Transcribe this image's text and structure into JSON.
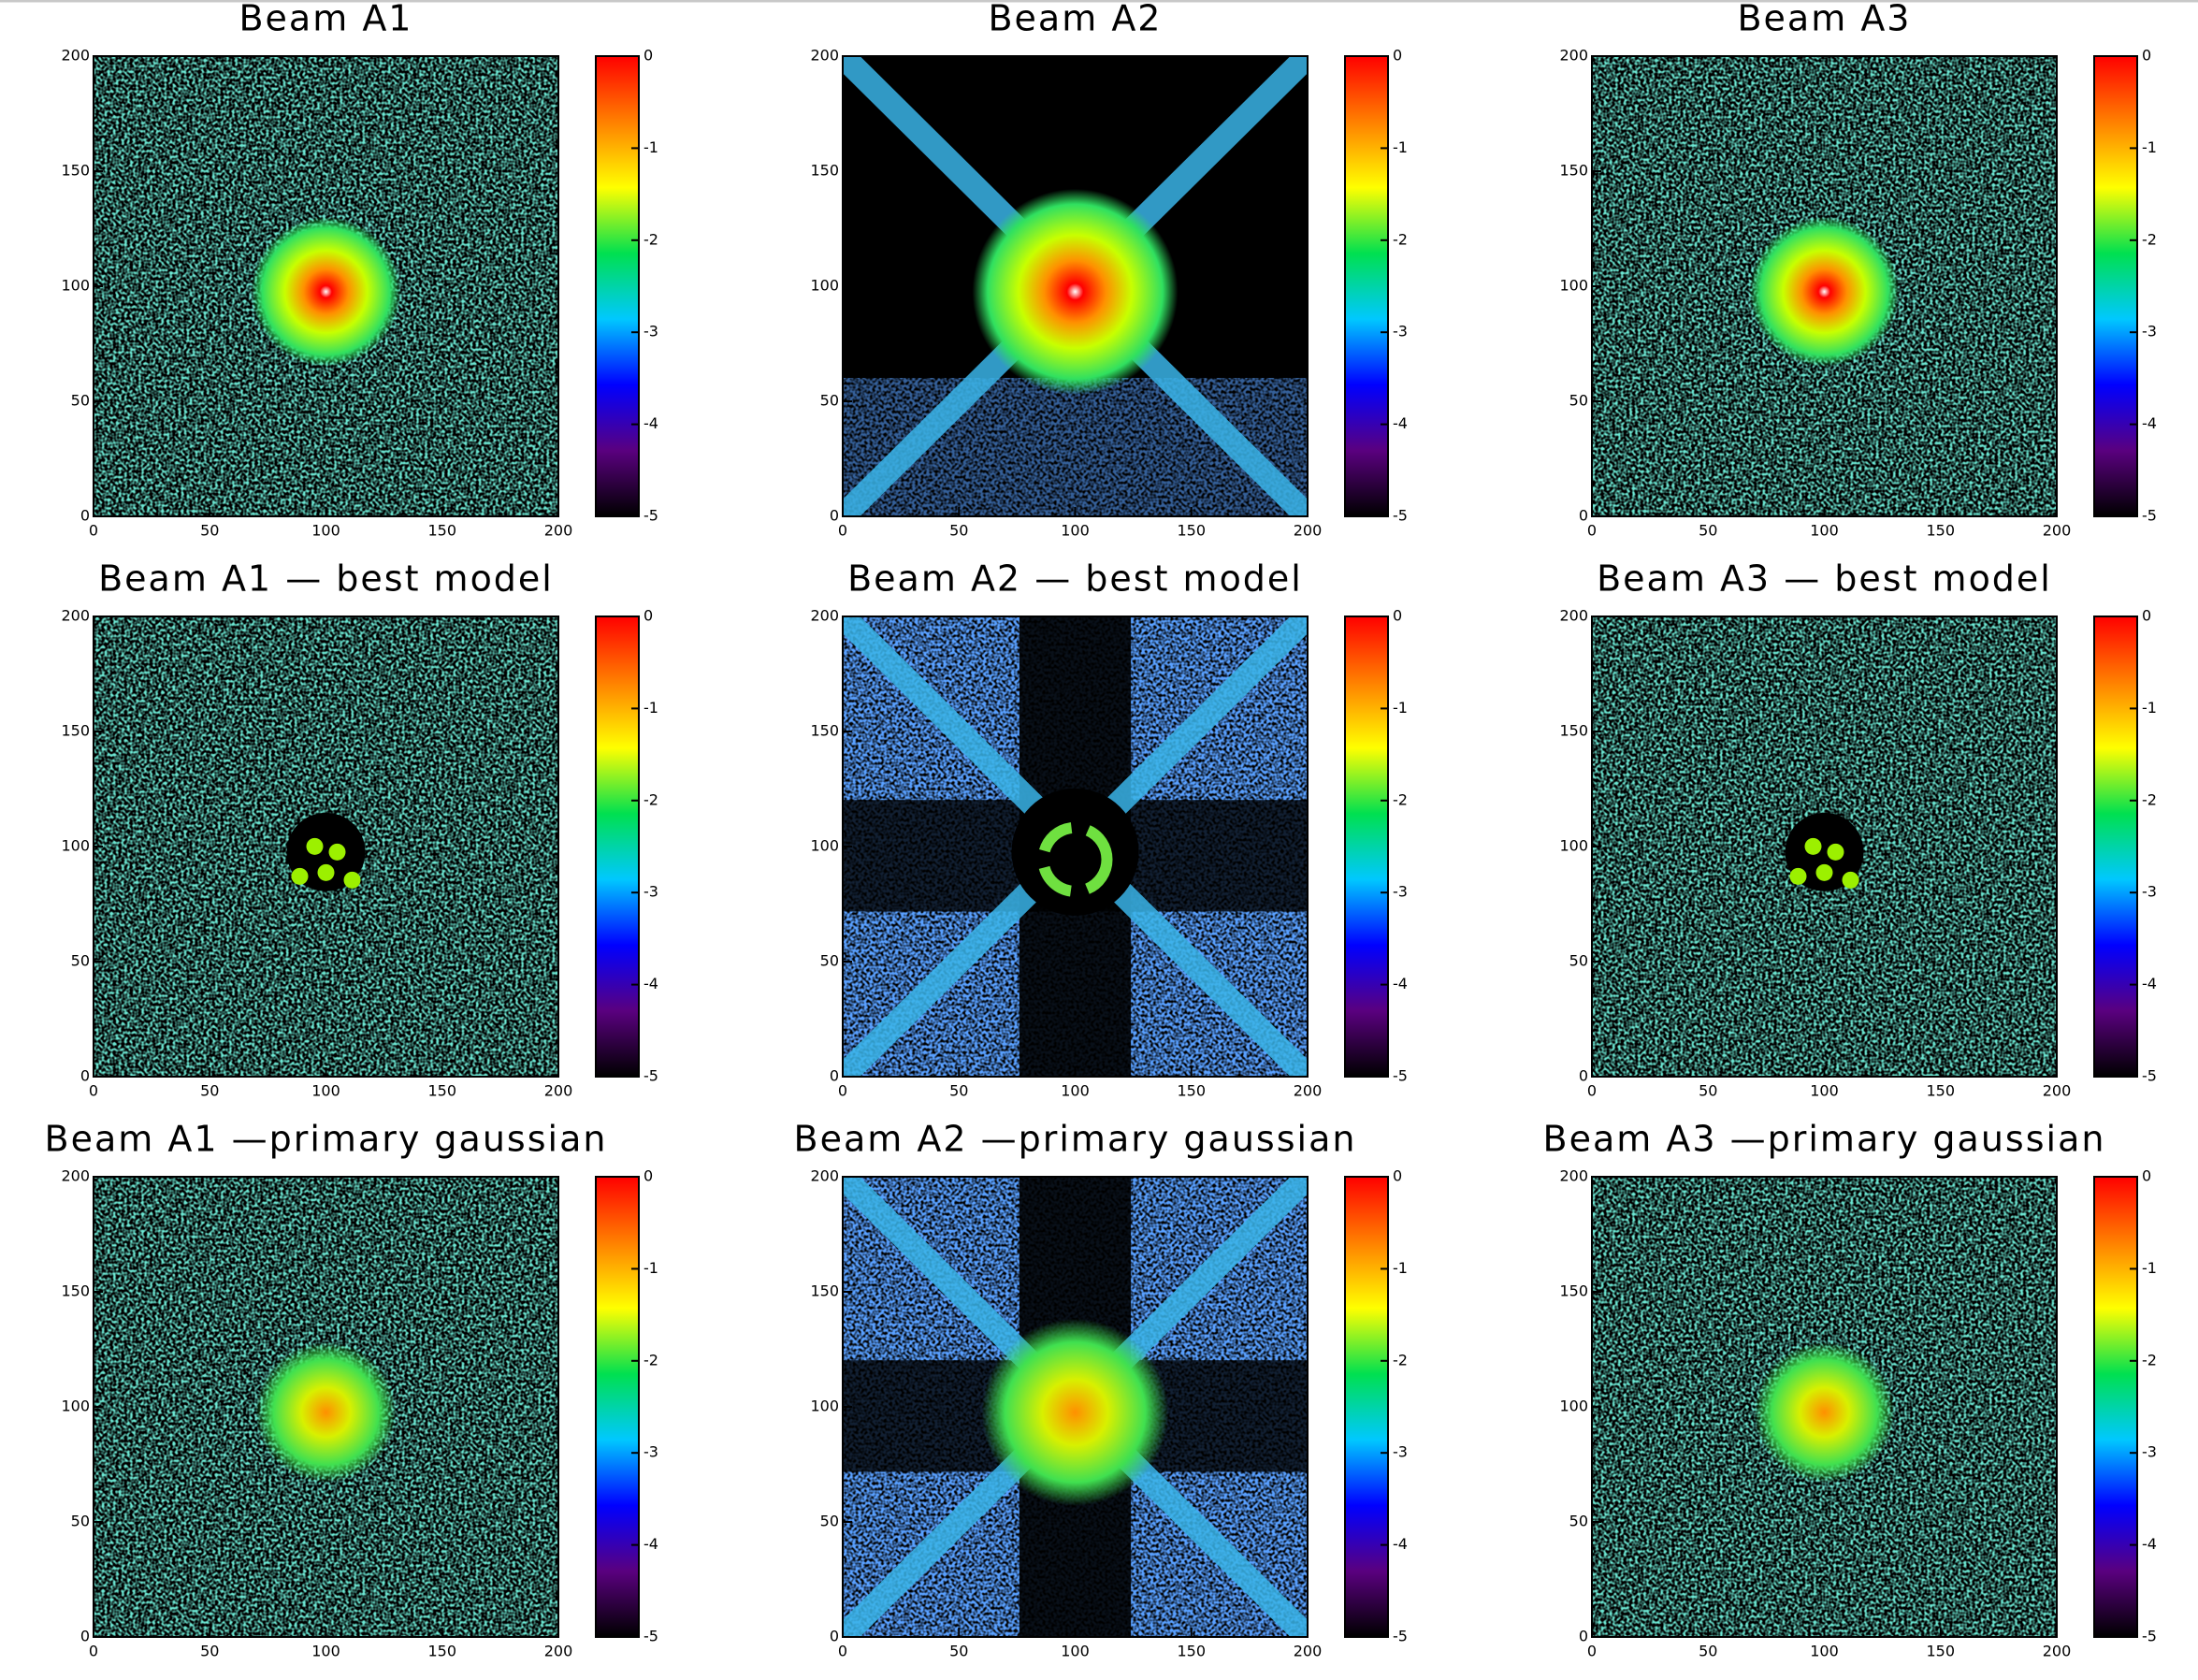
{
  "chart_data": [
    {
      "type": "heatmap",
      "title": "Beam A1",
      "xlim": [
        0,
        200
      ],
      "ylim": [
        0,
        200
      ],
      "xticks": [
        0,
        50,
        100,
        150,
        200
      ],
      "yticks": [
        0,
        50,
        100,
        150,
        200
      ],
      "zlim": [
        -5,
        0
      ],
      "zticks": [
        0,
        -1,
        -2,
        -3,
        -4,
        -5
      ],
      "colormap": [
        "#000000",
        "#5a007f",
        "#0000ff",
        "#00c8ff",
        "#00e050",
        "#ffff00",
        "#ff8000",
        "#ff0000"
      ]
    },
    {
      "type": "heatmap",
      "title": "Beam A2",
      "xlim": [
        0,
        200
      ],
      "ylim": [
        0,
        200
      ],
      "xticks": [
        0,
        50,
        100,
        150,
        200
      ],
      "yticks": [
        0,
        50,
        100,
        150,
        200
      ],
      "zlim": [
        -5,
        0
      ],
      "zticks": [
        0,
        -1,
        -2,
        -3,
        -4,
        -5
      ],
      "colormap": [
        "#000000",
        "#5a007f",
        "#0000ff",
        "#00c8ff",
        "#00e050",
        "#ffff00",
        "#ff8000",
        "#ff0000"
      ]
    },
    {
      "type": "heatmap",
      "title": "Beam A3",
      "xlim": [
        0,
        200
      ],
      "ylim": [
        0,
        200
      ],
      "xticks": [
        0,
        50,
        100,
        150,
        200
      ],
      "yticks": [
        0,
        50,
        100,
        150,
        200
      ],
      "zlim": [
        -5,
        0
      ],
      "zticks": [
        0,
        -1,
        -2,
        -3,
        -4,
        -5
      ],
      "colormap": [
        "#000000",
        "#5a007f",
        "#0000ff",
        "#00c8ff",
        "#00e050",
        "#ffff00",
        "#ff8000",
        "#ff0000"
      ]
    },
    {
      "type": "heatmap",
      "title": "Beam A1 — best model",
      "xlim": [
        0,
        200
      ],
      "ylim": [
        0,
        200
      ],
      "xticks": [
        0,
        50,
        100,
        150,
        200
      ],
      "yticks": [
        0,
        50,
        100,
        150,
        200
      ],
      "zlim": [
        -5,
        0
      ],
      "zticks": [
        0,
        -1,
        -2,
        -3,
        -4,
        -5
      ],
      "colormap": [
        "#000000",
        "#5a007f",
        "#0000ff",
        "#00c8ff",
        "#00e050",
        "#ffff00",
        "#ff8000",
        "#ff0000"
      ]
    },
    {
      "type": "heatmap",
      "title": "Beam A2 — best model",
      "xlim": [
        0,
        200
      ],
      "ylim": [
        0,
        200
      ],
      "xticks": [
        0,
        50,
        100,
        150,
        200
      ],
      "yticks": [
        0,
        50,
        100,
        150,
        200
      ],
      "zlim": [
        -5,
        0
      ],
      "zticks": [
        0,
        -1,
        -2,
        -3,
        -4,
        -5
      ],
      "colormap": [
        "#000000",
        "#5a007f",
        "#0000ff",
        "#00c8ff",
        "#00e050",
        "#ffff00",
        "#ff8000",
        "#ff0000"
      ]
    },
    {
      "type": "heatmap",
      "title": "Beam A3 — best model",
      "xlim": [
        0,
        200
      ],
      "ylim": [
        0,
        200
      ],
      "xticks": [
        0,
        50,
        100,
        150,
        200
      ],
      "yticks": [
        0,
        50,
        100,
        150,
        200
      ],
      "zlim": [
        -5,
        0
      ],
      "zticks": [
        0,
        -1,
        -2,
        -3,
        -4,
        -5
      ],
      "colormap": [
        "#000000",
        "#5a007f",
        "#0000ff",
        "#00c8ff",
        "#00e050",
        "#ffff00",
        "#ff8000",
        "#ff0000"
      ]
    },
    {
      "type": "heatmap",
      "title": "Beam A1 —primary gaussian",
      "xlim": [
        0,
        200
      ],
      "ylim": [
        0,
        200
      ],
      "xticks": [
        0,
        50,
        100,
        150,
        200
      ],
      "yticks": [
        0,
        50,
        100,
        150,
        200
      ],
      "zlim": [
        -5,
        0
      ],
      "zticks": [
        0,
        -1,
        -2,
        -3,
        -4,
        -5
      ],
      "colormap": [
        "#000000",
        "#5a007f",
        "#0000ff",
        "#00c8ff",
        "#00e050",
        "#ffff00",
        "#ff8000",
        "#ff0000"
      ]
    },
    {
      "type": "heatmap",
      "title": "Beam A2 —primary gaussian",
      "xlim": [
        0,
        200
      ],
      "ylim": [
        0,
        200
      ],
      "xticks": [
        0,
        50,
        100,
        150,
        200
      ],
      "yticks": [
        0,
        50,
        100,
        150,
        200
      ],
      "zlim": [
        -5,
        0
      ],
      "zticks": [
        0,
        -1,
        -2,
        -3,
        -4,
        -5
      ],
      "colormap": [
        "#000000",
        "#5a007f",
        "#0000ff",
        "#00c8ff",
        "#00e050",
        "#ffff00",
        "#ff8000",
        "#ff0000"
      ]
    },
    {
      "type": "heatmap",
      "title": "Beam A3 —primary gaussian",
      "xlim": [
        0,
        200
      ],
      "ylim": [
        0,
        200
      ],
      "xticks": [
        0,
        50,
        100,
        150,
        200
      ],
      "yticks": [
        0,
        50,
        100,
        150,
        200
      ],
      "zlim": [
        -5,
        0
      ],
      "zticks": [
        0,
        -1,
        -2,
        -3,
        -4,
        -5
      ],
      "colormap": [
        "#000000",
        "#5a007f",
        "#0000ff",
        "#00c8ff",
        "#00e050",
        "#ffff00",
        "#ff8000",
        "#ff0000"
      ]
    }
  ]
}
